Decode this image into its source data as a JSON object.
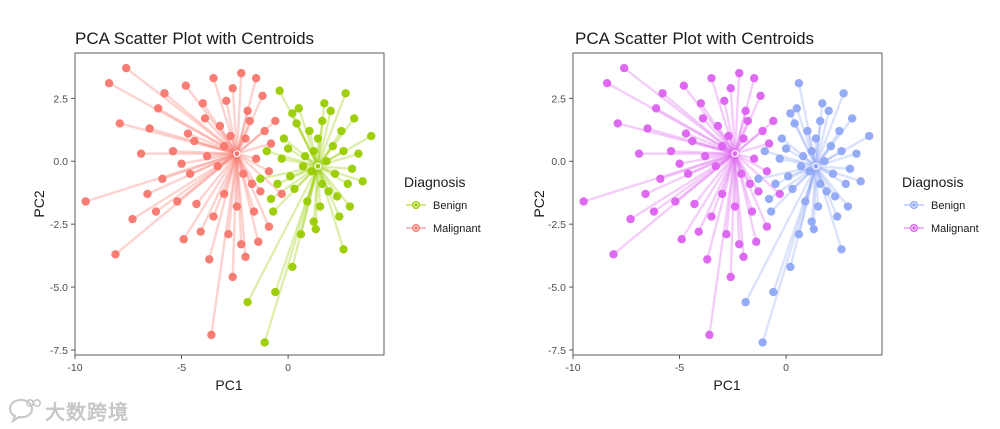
{
  "chart_data": [
    {
      "type": "scatter",
      "title": "PCA Scatter Plot with Centroids",
      "xlabel": "PC1",
      "ylabel": "PC2",
      "xlim": [
        -10,
        4.5
      ],
      "ylim": [
        -7.7,
        4.3
      ],
      "xticks": [
        -10,
        -5,
        0
      ],
      "xtick_labels": [
        "-10",
        "-5",
        "0"
      ],
      "yticks": [
        2.5,
        0.0,
        -2.5,
        -5.0,
        -7.5
      ],
      "ytick_labels": [
        "2.5",
        "0.0",
        "-2.5",
        "-5.0",
        "-7.5"
      ],
      "legend": {
        "title": "Diagnosis",
        "position": "right"
      },
      "series": [
        {
          "name": "Benign",
          "color": "#99cc00",
          "centroid": [
            1.4,
            -0.2
          ],
          "points": [
            [
              -0.4,
              2.8
            ],
            [
              0.5,
              2.1
            ],
            [
              2.7,
              2.7
            ],
            [
              3.9,
              1.0
            ],
            [
              3.0,
              -0.3
            ],
            [
              2.9,
              -1.8
            ],
            [
              2.6,
              -3.5
            ],
            [
              1.2,
              -2.4
            ],
            [
              0.2,
              -4.2
            ],
            [
              -0.6,
              -5.2
            ],
            [
              -1.1,
              -7.2
            ],
            [
              -1.9,
              -5.6
            ],
            [
              -0.8,
              -1.5
            ],
            [
              -1.3,
              -0.7
            ],
            [
              -0.2,
              0.9
            ],
            [
              0.8,
              0.2
            ],
            [
              1.6,
              1.6
            ],
            [
              2.1,
              0.6
            ],
            [
              0.3,
              -1.1
            ],
            [
              1.9,
              -1.2
            ],
            [
              1.1,
              -0.4
            ],
            [
              2.4,
              -2.2
            ],
            [
              0.6,
              -2.9
            ],
            [
              -0.3,
              0.1
            ],
            [
              3.3,
              0.3
            ],
            [
              1.7,
              2.3
            ],
            [
              0.1,
              -0.6
            ],
            [
              1.4,
              0.9
            ],
            [
              2.8,
              -0.9
            ],
            [
              -1.0,
              0.4
            ],
            [
              1.0,
              1.2
            ],
            [
              2.2,
              -0.5
            ],
            [
              0.4,
              1.5
            ],
            [
              1.5,
              -1.8
            ],
            [
              3.1,
              1.7
            ],
            [
              -0.5,
              -0.9
            ],
            [
              2.5,
              1.2
            ],
            [
              0.9,
              -1.6
            ],
            [
              1.8,
              0.0
            ],
            [
              0.0,
              0.5
            ],
            [
              2.0,
              2.0
            ],
            [
              1.3,
              -2.7
            ],
            [
              2.6,
              0.4
            ],
            [
              0.7,
              -0.2
            ],
            [
              3.5,
              -0.8
            ],
            [
              -0.7,
              -2.0
            ],
            [
              1.2,
              0.4
            ],
            [
              2.3,
              -1.4
            ],
            [
              0.2,
              1.9
            ],
            [
              1.6,
              -0.9
            ]
          ]
        },
        {
          "name": "Malignant",
          "color": "#f8766d",
          "centroid": [
            -2.4,
            0.3
          ],
          "points": [
            [
              -7.6,
              3.7
            ],
            [
              -8.4,
              3.1
            ],
            [
              -9.5,
              -1.6
            ],
            [
              -8.1,
              -3.7
            ],
            [
              -3.6,
              -6.9
            ],
            [
              -3.5,
              3.3
            ],
            [
              -2.2,
              3.5
            ],
            [
              -1.5,
              3.3
            ],
            [
              -6.1,
              2.1
            ],
            [
              -7.9,
              1.5
            ],
            [
              -6.5,
              1.3
            ],
            [
              -5.9,
              -0.7
            ],
            [
              -6.6,
              -1.3
            ],
            [
              -7.3,
              -2.3
            ],
            [
              -5.2,
              -1.6
            ],
            [
              -4.9,
              -3.1
            ],
            [
              -4.1,
              -2.8
            ],
            [
              -3.7,
              -3.9
            ],
            [
              -2.6,
              -4.6
            ],
            [
              -2.0,
              -3.8
            ],
            [
              -1.4,
              -3.2
            ],
            [
              -1.6,
              -2.0
            ],
            [
              -0.9,
              -2.6
            ],
            [
              -3.0,
              -1.3
            ],
            [
              -4.4,
              0.8
            ],
            [
              -3.9,
              1.7
            ],
            [
              -2.9,
              2.4
            ],
            [
              -1.9,
              2.0
            ],
            [
              -1.1,
              1.2
            ],
            [
              -0.6,
              1.6
            ],
            [
              -0.9,
              -0.4
            ],
            [
              -1.7,
              -0.9
            ],
            [
              -3.3,
              -0.2
            ],
            [
              -4.6,
              -0.5
            ],
            [
              -5.4,
              0.4
            ],
            [
              -2.7,
              1.0
            ],
            [
              -2.1,
              -0.5
            ],
            [
              -3.0,
              0.6
            ],
            [
              -1.5,
              0.1
            ],
            [
              -4.0,
              2.3
            ],
            [
              -2.4,
              -1.8
            ],
            [
              -3.5,
              -2.2
            ],
            [
              -5.8,
              2.7
            ],
            [
              -4.7,
              1.1
            ],
            [
              -1.2,
              2.6
            ],
            [
              -0.3,
              -1.3
            ],
            [
              -2.8,
              -2.9
            ],
            [
              -1.8,
              1.6
            ],
            [
              -3.8,
              0.2
            ],
            [
              -6.9,
              0.3
            ],
            [
              -2.2,
              -3.3
            ],
            [
              -0.8,
              0.7
            ],
            [
              -4.3,
              -1.7
            ],
            [
              -2.6,
              2.9
            ],
            [
              -1.3,
              -1.2
            ],
            [
              -3.2,
              1.4
            ],
            [
              -5.0,
              -0.1
            ],
            [
              -6.2,
              -2.0
            ],
            [
              -2.0,
              0.9
            ],
            [
              -4.8,
              3.0
            ]
          ]
        }
      ]
    },
    {
      "type": "scatter",
      "title": "PCA Scatter Plot with Centroids",
      "xlabel": "PC1",
      "ylabel": "PC2",
      "xlim": [
        -10,
        4.5
      ],
      "ylim": [
        -7.7,
        4.3
      ],
      "xticks": [
        -10,
        -5,
        0
      ],
      "xtick_labels": [
        "-10",
        "-5",
        "0"
      ],
      "yticks": [
        2.5,
        0.0,
        -2.5,
        -5.0,
        -7.5
      ],
      "ytick_labels": [
        "2.5",
        "0.0",
        "-2.5",
        "-5.0",
        "-7.5"
      ],
      "legend": {
        "title": "Diagnosis",
        "position": "right"
      },
      "series": [
        {
          "name": "Benign",
          "color": "#8fa6f5",
          "centroid": [
            1.4,
            -0.2
          ],
          "points": [
            [
              0.6,
              3.1
            ],
            [
              0.5,
              2.1
            ],
            [
              2.7,
              2.7
            ],
            [
              3.9,
              1.0
            ],
            [
              3.0,
              -0.3
            ],
            [
              2.9,
              -1.8
            ],
            [
              2.6,
              -3.5
            ],
            [
              1.2,
              -2.4
            ],
            [
              0.2,
              -4.2
            ],
            [
              -0.6,
              -5.2
            ],
            [
              -1.1,
              -7.2
            ],
            [
              -1.9,
              -5.6
            ],
            [
              -0.8,
              -1.5
            ],
            [
              -1.3,
              -0.7
            ],
            [
              -0.2,
              0.9
            ],
            [
              0.8,
              0.2
            ],
            [
              1.6,
              1.6
            ],
            [
              2.1,
              0.6
            ],
            [
              0.3,
              -1.1
            ],
            [
              1.9,
              -1.2
            ],
            [
              1.1,
              -0.4
            ],
            [
              2.4,
              -2.2
            ],
            [
              0.6,
              -2.9
            ],
            [
              -0.3,
              0.1
            ],
            [
              3.3,
              0.3
            ],
            [
              1.7,
              2.3
            ],
            [
              0.1,
              -0.6
            ],
            [
              1.4,
              0.9
            ],
            [
              2.8,
              -0.9
            ],
            [
              -1.0,
              0.4
            ],
            [
              1.0,
              1.2
            ],
            [
              2.2,
              -0.5
            ],
            [
              0.4,
              1.5
            ],
            [
              1.5,
              -1.8
            ],
            [
              3.1,
              1.7
            ],
            [
              -0.5,
              -0.9
            ],
            [
              2.5,
              1.2
            ],
            [
              0.9,
              -1.6
            ],
            [
              1.8,
              0.0
            ],
            [
              0.0,
              0.5
            ],
            [
              2.0,
              2.0
            ],
            [
              1.3,
              -2.7
            ],
            [
              2.6,
              0.4
            ],
            [
              0.7,
              -0.2
            ],
            [
              3.5,
              -0.8
            ],
            [
              -0.7,
              -2.0
            ],
            [
              1.2,
              0.4
            ],
            [
              2.3,
              -1.4
            ],
            [
              0.2,
              1.9
            ],
            [
              1.6,
              -0.9
            ]
          ]
        },
        {
          "name": "Malignant",
          "color": "#dc62f0",
          "centroid": [
            -2.4,
            0.3
          ],
          "points": [
            [
              -7.6,
              3.7
            ],
            [
              -8.4,
              3.1
            ],
            [
              -9.5,
              -1.6
            ],
            [
              -8.1,
              -3.7
            ],
            [
              -3.6,
              -6.9
            ],
            [
              -3.5,
              3.3
            ],
            [
              -2.2,
              3.5
            ],
            [
              -1.5,
              3.3
            ],
            [
              -6.1,
              2.1
            ],
            [
              -7.9,
              1.5
            ],
            [
              -6.5,
              1.3
            ],
            [
              -5.9,
              -0.7
            ],
            [
              -6.6,
              -1.3
            ],
            [
              -7.3,
              -2.3
            ],
            [
              -5.2,
              -1.6
            ],
            [
              -4.9,
              -3.1
            ],
            [
              -4.1,
              -2.8
            ],
            [
              -3.7,
              -3.9
            ],
            [
              -2.6,
              -4.6
            ],
            [
              -2.0,
              -3.8
            ],
            [
              -1.4,
              -3.2
            ],
            [
              -1.6,
              -2.0
            ],
            [
              -0.9,
              -2.6
            ],
            [
              -3.0,
              -1.3
            ],
            [
              -4.4,
              0.8
            ],
            [
              -3.9,
              1.7
            ],
            [
              -2.9,
              2.4
            ],
            [
              -1.9,
              2.0
            ],
            [
              -1.1,
              1.2
            ],
            [
              -0.6,
              1.6
            ],
            [
              -0.9,
              -0.4
            ],
            [
              -1.7,
              -0.9
            ],
            [
              -3.3,
              -0.2
            ],
            [
              -4.6,
              -0.5
            ],
            [
              -5.4,
              0.4
            ],
            [
              -2.7,
              1.0
            ],
            [
              -2.1,
              -0.5
            ],
            [
              -3.0,
              0.6
            ],
            [
              -1.5,
              0.1
            ],
            [
              -4.0,
              2.3
            ],
            [
              -2.4,
              -1.8
            ],
            [
              -3.5,
              -2.2
            ],
            [
              -5.8,
              2.7
            ],
            [
              -4.7,
              1.1
            ],
            [
              -1.2,
              2.6
            ],
            [
              -0.3,
              -1.3
            ],
            [
              -2.8,
              -2.9
            ],
            [
              -1.8,
              1.6
            ],
            [
              -3.8,
              0.2
            ],
            [
              -6.9,
              0.3
            ],
            [
              -2.2,
              -3.3
            ],
            [
              -0.8,
              0.7
            ],
            [
              -4.3,
              -1.7
            ],
            [
              -2.6,
              2.9
            ],
            [
              -1.3,
              -1.2
            ],
            [
              -3.2,
              1.4
            ],
            [
              -5.0,
              -0.1
            ],
            [
              -6.2,
              -2.0
            ],
            [
              -2.0,
              0.9
            ],
            [
              -4.8,
              3.0
            ]
          ]
        }
      ]
    }
  ],
  "watermark": {
    "text": "大数跨境",
    "icon": "chat-bubble-logo-icon"
  }
}
